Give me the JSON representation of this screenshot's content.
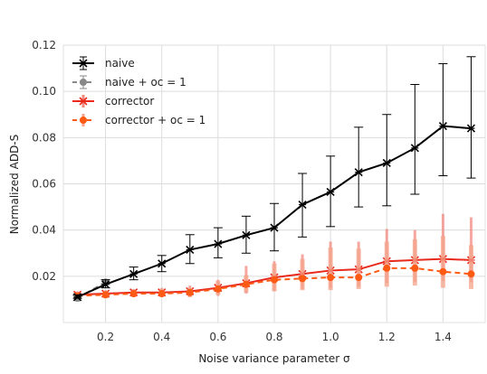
{
  "chart_data": {
    "type": "line",
    "title": "",
    "xlabel": "Noise variance parameter σ",
    "ylabel": "Normalized ADD-S",
    "xlim": [
      0.05,
      1.55
    ],
    "ylim": [
      0.0,
      0.12
    ],
    "xticks": [
      0.2,
      0.4,
      0.6,
      0.8,
      1.0,
      1.2,
      1.4
    ],
    "xtick_labels": [
      "0.2",
      "0.4",
      "0.6",
      "0.8",
      "1.0",
      "1.2",
      "1.4"
    ],
    "yticks": [
      0.02,
      0.04,
      0.06,
      0.08,
      0.1,
      0.12
    ],
    "ytick_labels": [
      "0.02",
      "0.04",
      "0.06",
      "0.08",
      "0.10",
      "0.12"
    ],
    "grid": true,
    "legend_position": "top-left",
    "series": [
      {
        "name": "naive",
        "color": "#000000",
        "line_style": "solid",
        "marker": "x",
        "x": [
          0.1,
          0.2,
          0.3,
          0.4,
          0.5,
          0.6,
          0.7,
          0.8,
          0.9,
          1.0,
          1.1,
          1.2,
          1.3,
          1.4,
          1.5
        ],
        "y": [
          0.011,
          0.0165,
          0.021,
          0.0255,
          0.0315,
          0.034,
          0.0378,
          0.041,
          0.051,
          0.0565,
          0.065,
          0.069,
          0.0755,
          0.085,
          0.084
        ],
        "err_low": [
          0.0105,
          0.015,
          0.0185,
          0.022,
          0.0255,
          0.028,
          0.03,
          0.031,
          0.037,
          0.0415,
          0.05,
          0.0505,
          0.0555,
          0.0635,
          0.0625
        ],
        "err_high": [
          0.012,
          0.0185,
          0.024,
          0.029,
          0.038,
          0.041,
          0.046,
          0.0515,
          0.0645,
          0.072,
          0.0845,
          0.09,
          0.103,
          0.112,
          0.115
        ]
      },
      {
        "name": "naive + oc = 1",
        "color": "#888888",
        "line_style": "dashed",
        "marker": "circle",
        "x": [
          0.1,
          0.2
        ],
        "y": [
          0.0105,
          0.0175
        ],
        "err_low": [
          0.0095,
          0.0165
        ],
        "err_high": [
          0.0115,
          0.0185
        ]
      },
      {
        "name": "corrector",
        "color": "#e8291c",
        "line_style": "solid",
        "marker": "x",
        "x": [
          0.1,
          0.2,
          0.3,
          0.4,
          0.5,
          0.6,
          0.7,
          0.8,
          0.9,
          1.0,
          1.1,
          1.2,
          1.3,
          1.4,
          1.5
        ],
        "y": [
          0.012,
          0.0125,
          0.013,
          0.013,
          0.0135,
          0.015,
          0.017,
          0.0195,
          0.021,
          0.0225,
          0.023,
          0.0265,
          0.027,
          0.0275,
          0.027
        ],
        "err_low": [
          0.0105,
          0.011,
          0.011,
          0.011,
          0.011,
          0.0115,
          0.0125,
          0.0135,
          0.0145,
          0.015,
          0.0155,
          0.017,
          0.0175,
          0.018,
          0.0175
        ],
        "err_high": [
          0.0135,
          0.014,
          0.0145,
          0.015,
          0.016,
          0.0185,
          0.0245,
          0.0265,
          0.0295,
          0.035,
          0.035,
          0.0405,
          0.04,
          0.047,
          0.0455
        ]
      },
      {
        "name": "corrector + oc = 1",
        "color": "#ff5a14",
        "line_style": "dashed",
        "marker": "circle",
        "x": [
          0.1,
          0.2,
          0.3,
          0.4,
          0.5,
          0.6,
          0.7,
          0.8,
          0.9,
          1.0,
          1.1,
          1.2,
          1.3,
          1.4,
          1.5
        ],
        "y": [
          0.0115,
          0.012,
          0.0125,
          0.0125,
          0.013,
          0.0145,
          0.0165,
          0.0185,
          0.019,
          0.0195,
          0.0195,
          0.0235,
          0.0235,
          0.022,
          0.021
        ],
        "err_low": [
          0.0105,
          0.0105,
          0.011,
          0.011,
          0.011,
          0.012,
          0.013,
          0.0135,
          0.014,
          0.014,
          0.0145,
          0.0155,
          0.016,
          0.015,
          0.0145
        ],
        "err_high": [
          0.0125,
          0.0135,
          0.014,
          0.0145,
          0.015,
          0.018,
          0.0205,
          0.0255,
          0.0275,
          0.0325,
          0.032,
          0.035,
          0.036,
          0.0375,
          0.0335
        ]
      }
    ]
  }
}
